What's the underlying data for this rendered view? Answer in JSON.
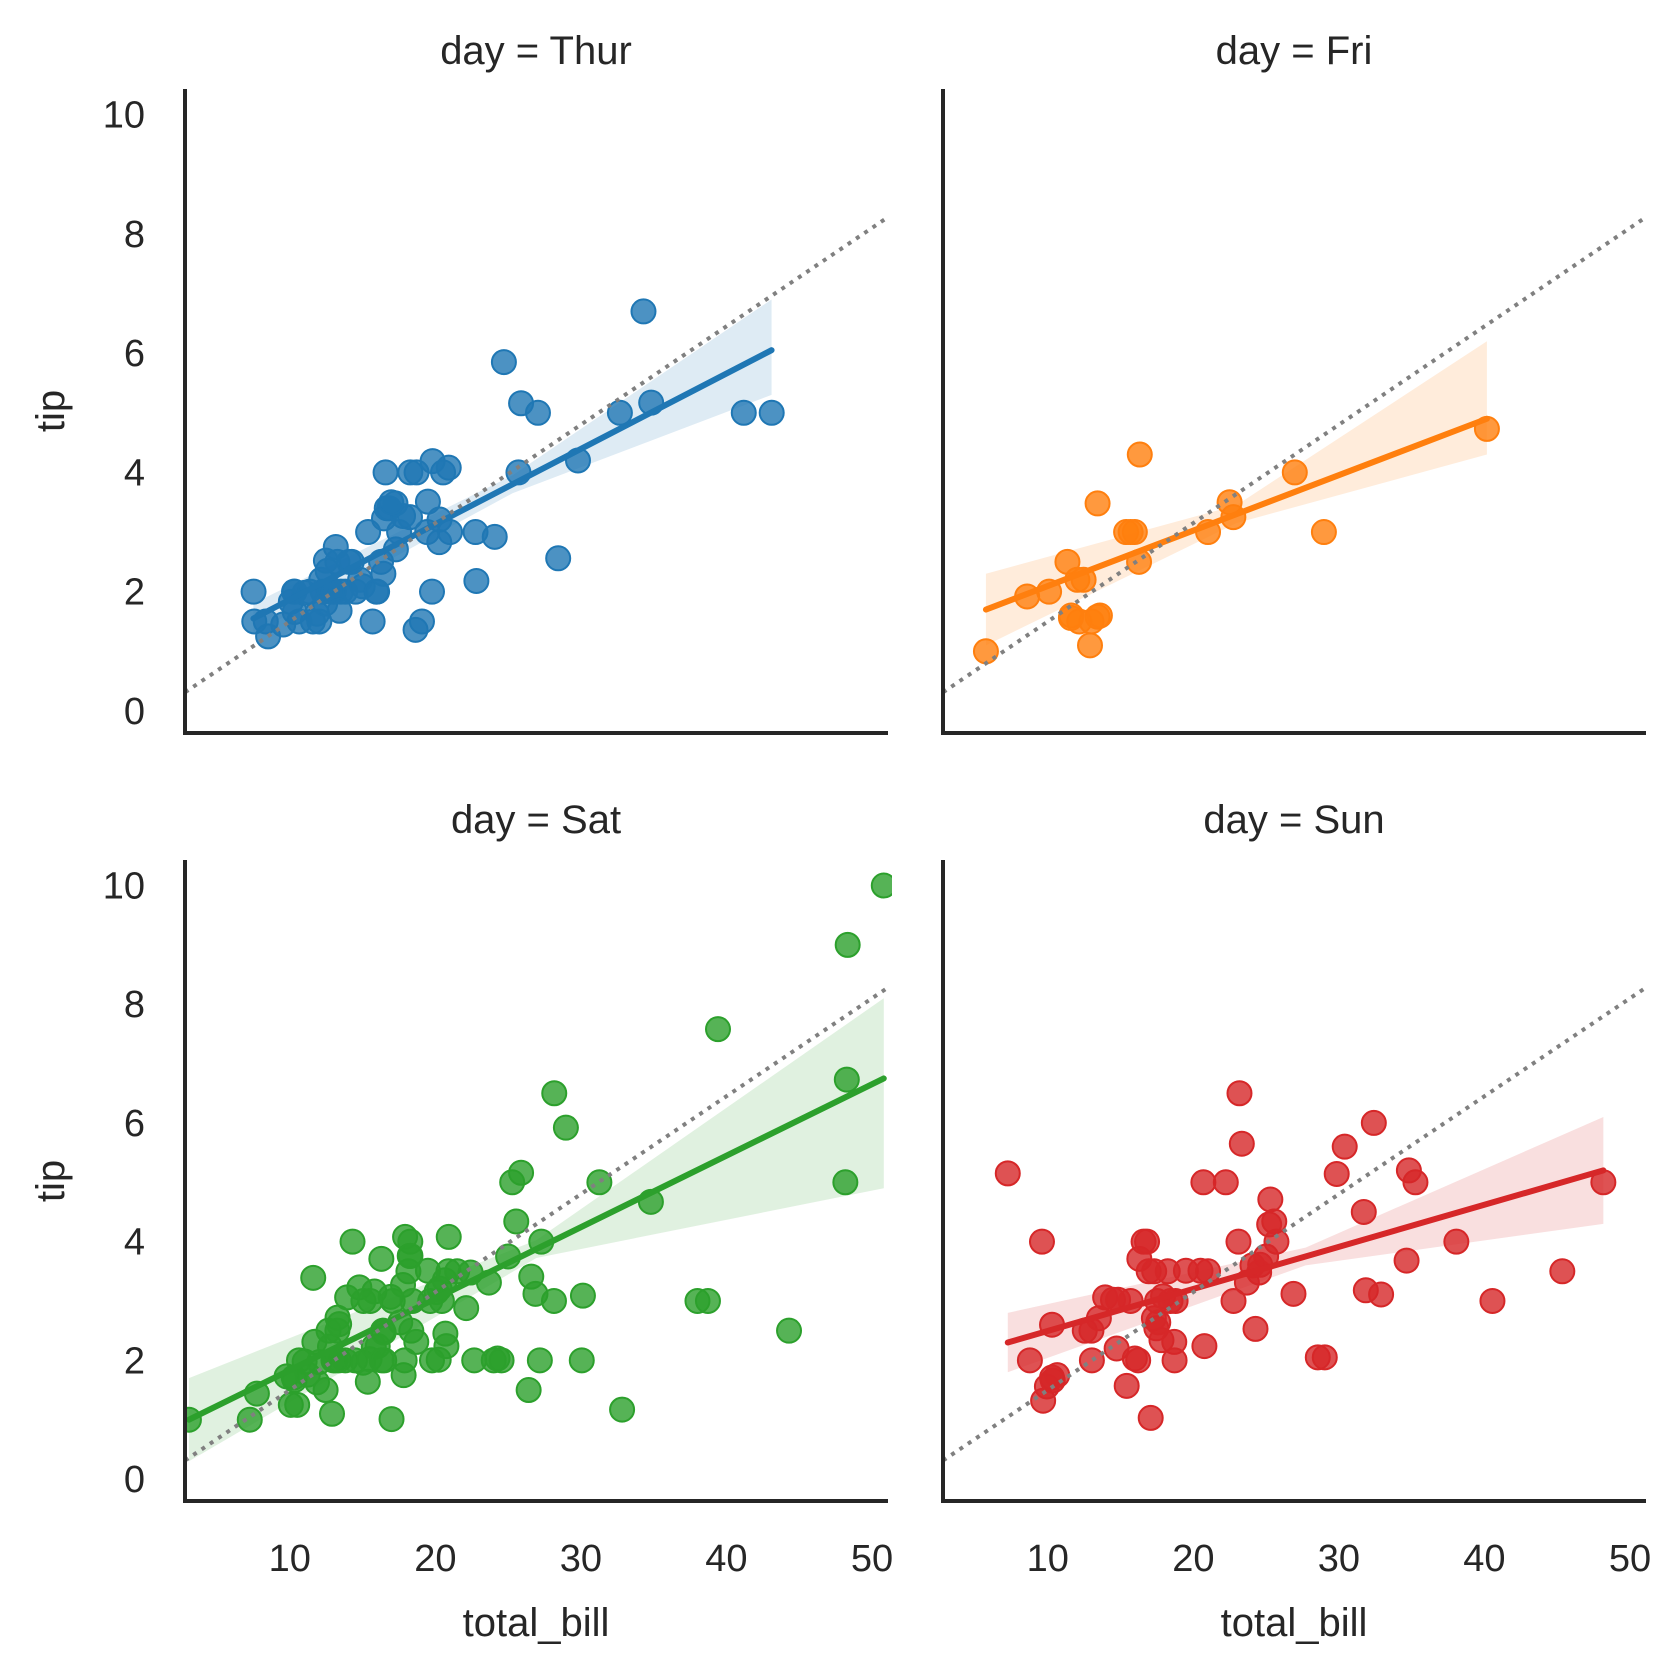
{
  "chart_data": [
    {
      "type": "scatter",
      "title": "day = Thur",
      "xlabel": "",
      "ylabel": "tip",
      "xlim": [
        2.8,
        51.1
      ],
      "ylim": [
        -0.37,
        10.43
      ],
      "xticks": [],
      "yticks": [
        "0",
        "2",
        "4",
        "6",
        "8",
        "10"
      ],
      "color": "#1f77b4",
      "regression": {
        "x": [
          7.5,
          43.1
        ],
        "y": [
          1.55,
          6.05
        ],
        "ci_low_end": [
          1.3,
          5.3
        ],
        "ci_high_end": [
          1.8,
          6.9
        ]
      },
      "reference_line": {
        "slope": 0.165,
        "intercept": -0.15,
        "style": "dotted",
        "color": "#808080"
      },
      "points": [
        [
          7.51,
          2.0
        ],
        [
          7.56,
          1.5
        ],
        [
          8.35,
          1.5
        ],
        [
          8.51,
          1.25
        ],
        [
          9.55,
          1.45
        ],
        [
          10.07,
          1.83
        ],
        [
          10.29,
          2.0
        ],
        [
          10.33,
          2.0
        ],
        [
          10.34,
          1.66
        ],
        [
          10.65,
          1.5
        ],
        [
          11.02,
          1.98
        ],
        [
          11.38,
          2.0
        ],
        [
          11.59,
          1.5
        ],
        [
          11.87,
          1.63
        ],
        [
          12.03,
          1.5
        ],
        [
          12.16,
          2.2
        ],
        [
          12.26,
          2.0
        ],
        [
          12.43,
          1.8
        ],
        [
          12.48,
          2.52
        ],
        [
          12.6,
          2.35
        ],
        [
          12.74,
          2.01
        ],
        [
          13.0,
          2.0
        ],
        [
          13.03,
          2.0
        ],
        [
          13.16,
          2.75
        ],
        [
          13.27,
          2.5
        ],
        [
          13.51,
          2.0
        ],
        [
          13.81,
          2.0
        ],
        [
          13.42,
          1.68
        ],
        [
          14.07,
          2.5
        ],
        [
          14.26,
          2.5
        ],
        [
          14.52,
          2.0
        ],
        [
          14.83,
          2.2
        ],
        [
          15.01,
          2.09
        ],
        [
          15.38,
          3.0
        ],
        [
          15.69,
          1.5
        ],
        [
          15.95,
          2.0
        ],
        [
          16.0,
          2.0
        ],
        [
          16.27,
          2.5
        ],
        [
          16.43,
          2.3
        ],
        [
          16.47,
          3.23
        ],
        [
          16.58,
          4.0
        ],
        [
          16.66,
          3.4
        ],
        [
          16.82,
          3.4
        ],
        [
          17.29,
          2.71
        ],
        [
          17.51,
          3.0
        ],
        [
          17.78,
          3.27
        ],
        [
          18.26,
          3.25
        ],
        [
          18.28,
          4.0
        ],
        [
          18.64,
          1.36
        ],
        [
          18.71,
          4.0
        ],
        [
          19.08,
          1.5
        ],
        [
          19.44,
          3.0
        ],
        [
          19.49,
          3.51
        ],
        [
          19.77,
          2.0
        ],
        [
          20.27,
          2.83
        ],
        [
          20.29,
          3.21
        ],
        [
          20.53,
          4.0
        ],
        [
          20.92,
          4.08
        ],
        [
          21.01,
          3.0
        ],
        [
          22.76,
          3.0
        ],
        [
          22.82,
          2.18
        ],
        [
          24.08,
          2.92
        ],
        [
          25.71,
          4.0
        ],
        [
          25.89,
          5.16
        ],
        [
          27.05,
          5.0
        ],
        [
          28.44,
          2.56
        ],
        [
          29.8,
          4.2
        ],
        [
          32.68,
          5.0
        ],
        [
          34.3,
          6.7
        ],
        [
          34.83,
          5.17
        ],
        [
          41.19,
          5.0
        ],
        [
          43.11,
          5.0
        ],
        [
          24.71,
          5.85
        ],
        [
          17.26,
          3.48
        ],
        [
          16.97,
          3.5
        ],
        [
          19.81,
          4.19
        ]
      ]
    },
    {
      "type": "scatter",
      "title": "day = Fri",
      "xlabel": "",
      "ylabel": "",
      "xlim": [
        2.8,
        51.1
      ],
      "ylim": [
        -0.37,
        10.43
      ],
      "xticks": [],
      "yticks": [],
      "color": "#ff7f0e",
      "regression": {
        "x": [
          5.75,
          40.17
        ],
        "y": [
          1.7,
          4.9
        ],
        "ci_low_end": [
          1.1,
          4.3
        ],
        "ci_high_end": [
          2.3,
          6.2
        ]
      },
      "reference_line": {
        "slope": 0.165,
        "intercept": -0.15,
        "style": "dotted",
        "color": "#808080"
      },
      "points": [
        [
          5.75,
          1.0
        ],
        [
          8.58,
          1.92
        ],
        [
          10.09,
          2.0
        ],
        [
          11.35,
          2.5
        ],
        [
          12.03,
          2.2
        ],
        [
          12.46,
          2.2
        ],
        [
          13.42,
          3.48
        ],
        [
          13.42,
          1.58
        ],
        [
          12.16,
          1.5
        ],
        [
          13.0,
          1.5
        ],
        [
          12.9,
          1.1
        ],
        [
          15.38,
          3.0
        ],
        [
          15.98,
          3.0
        ],
        [
          16.27,
          2.5
        ],
        [
          16.32,
          4.3
        ],
        [
          21.01,
          3.0
        ],
        [
          22.49,
          3.5
        ],
        [
          22.75,
          3.25
        ],
        [
          26.97,
          4.0
        ],
        [
          28.97,
          3.0
        ],
        [
          40.17,
          4.73
        ],
        [
          15.69,
          3.0
        ],
        [
          11.61,
          1.6
        ],
        [
          13.58,
          1.6
        ],
        [
          11.59,
          1.56
        ]
      ]
    },
    {
      "type": "scatter",
      "title": "day = Sat",
      "xlabel": "total_bill",
      "ylabel": "tip",
      "xlim": [
        2.8,
        51.1
      ],
      "ylim": [
        -0.37,
        10.43
      ],
      "xticks": [
        "10",
        "20",
        "30",
        "40",
        "50"
      ],
      "yticks": [
        "0",
        "2",
        "4",
        "6",
        "8",
        "10"
      ],
      "color": "#2ca02c",
      "regression": {
        "x": [
          3.07,
          50.81
        ],
        "y": [
          1.0,
          6.75
        ],
        "ci_low_end": [
          0.3,
          4.9
        ],
        "ci_high_end": [
          1.7,
          8.1
        ]
      },
      "reference_line": {
        "slope": 0.165,
        "intercept": -0.15,
        "style": "dotted",
        "color": "#808080"
      },
      "points": [
        [
          3.07,
          1.0
        ],
        [
          7.25,
          1.0
        ],
        [
          7.74,
          1.44
        ],
        [
          9.78,
          1.73
        ],
        [
          10.07,
          1.25
        ],
        [
          10.27,
          1.71
        ],
        [
          10.33,
          1.67
        ],
        [
          10.51,
          1.25
        ],
        [
          10.63,
          2.0
        ],
        [
          11.02,
          1.98
        ],
        [
          11.24,
          1.76
        ],
        [
          11.61,
          3.39
        ],
        [
          11.69,
          2.31
        ],
        [
          11.87,
          1.63
        ],
        [
          12.02,
          1.97
        ],
        [
          12.46,
          1.5
        ],
        [
          12.66,
          2.5
        ],
        [
          12.76,
          2.23
        ],
        [
          12.9,
          1.1
        ],
        [
          13.0,
          2.0
        ],
        [
          13.13,
          2.0
        ],
        [
          13.27,
          2.5
        ],
        [
          13.28,
          2.72
        ],
        [
          13.37,
          2.0
        ],
        [
          13.39,
          2.61
        ],
        [
          13.81,
          2.0
        ],
        [
          13.94,
          3.06
        ],
        [
          14.31,
          4.0
        ],
        [
          14.48,
          2.0
        ],
        [
          14.78,
          3.23
        ],
        [
          15.04,
          1.96
        ],
        [
          15.06,
          3.0
        ],
        [
          15.36,
          1.64
        ],
        [
          15.48,
          2.02
        ],
        [
          15.53,
          3.0
        ],
        [
          15.77,
          2.23
        ],
        [
          15.81,
          3.16
        ],
        [
          16.04,
          2.24
        ],
        [
          16.29,
          3.71
        ],
        [
          16.31,
          2.0
        ],
        [
          16.4,
          2.5
        ],
        [
          16.45,
          2.47
        ],
        [
          16.49,
          2.0
        ],
        [
          16.93,
          3.07
        ],
        [
          16.99,
          1.01
        ],
        [
          17.07,
          3.0
        ],
        [
          17.59,
          2.64
        ],
        [
          17.78,
          3.27
        ],
        [
          17.82,
          1.75
        ],
        [
          17.89,
          2.0
        ],
        [
          17.92,
          4.08
        ],
        [
          18.15,
          3.5
        ],
        [
          18.24,
          3.76
        ],
        [
          18.28,
          4.0
        ],
        [
          18.29,
          3.76
        ],
        [
          18.35,
          2.5
        ],
        [
          18.43,
          3.0
        ],
        [
          18.69,
          2.31
        ],
        [
          19.49,
          3.51
        ],
        [
          19.65,
          3.0
        ],
        [
          19.77,
          2.0
        ],
        [
          20.08,
          3.15
        ],
        [
          20.23,
          2.01
        ],
        [
          20.29,
          3.21
        ],
        [
          20.45,
          3.0
        ],
        [
          20.65,
          3.35
        ],
        [
          20.69,
          2.45
        ],
        [
          20.76,
          2.24
        ],
        [
          20.9,
          3.5
        ],
        [
          20.92,
          4.08
        ],
        [
          21.5,
          3.5
        ],
        [
          22.12,
          2.88
        ],
        [
          22.42,
          3.48
        ],
        [
          22.67,
          2.0
        ],
        [
          23.68,
          3.31
        ],
        [
          24.01,
          2.0
        ],
        [
          24.27,
          2.03
        ],
        [
          24.55,
          2.0
        ],
        [
          25.0,
          3.75
        ],
        [
          25.28,
          5.0
        ],
        [
          25.56,
          4.34
        ],
        [
          25.89,
          5.16
        ],
        [
          26.41,
          1.5
        ],
        [
          26.59,
          3.41
        ],
        [
          26.88,
          3.12
        ],
        [
          27.18,
          2.0
        ],
        [
          27.28,
          4.0
        ],
        [
          28.15,
          3.0
        ],
        [
          28.17,
          6.5
        ],
        [
          28.97,
          5.92
        ],
        [
          30.06,
          2.0
        ],
        [
          30.14,
          3.09
        ],
        [
          31.27,
          5.0
        ],
        [
          32.83,
          1.17
        ],
        [
          34.81,
          4.67
        ],
        [
          38.01,
          3.0
        ],
        [
          38.73,
          3.0
        ],
        [
          39.42,
          7.58
        ],
        [
          44.3,
          2.5
        ],
        [
          48.17,
          5.0
        ],
        [
          48.27,
          6.73
        ],
        [
          48.33,
          9.0
        ],
        [
          50.81,
          10.0
        ]
      ]
    },
    {
      "type": "scatter",
      "title": "day = Sun",
      "xlabel": "total_bill",
      "ylabel": "",
      "xlim": [
        2.8,
        51.1
      ],
      "ylim": [
        -0.37,
        10.43
      ],
      "xticks": [
        "10",
        "20",
        "30",
        "40",
        "50"
      ],
      "yticks": [],
      "color": "#d62728",
      "regression": {
        "x": [
          7.25,
          48.17
        ],
        "y": [
          2.3,
          5.2
        ],
        "ci_low_end": [
          1.8,
          4.3
        ],
        "ci_high_end": [
          2.8,
          6.1
        ]
      },
      "reference_line": {
        "slope": 0.165,
        "intercept": -0.15,
        "style": "dotted",
        "color": "#808080"
      },
      "points": [
        [
          7.25,
          5.15
        ],
        [
          8.77,
          2.0
        ],
        [
          9.6,
          4.0
        ],
        [
          9.68,
          1.32
        ],
        [
          9.94,
          1.56
        ],
        [
          10.29,
          1.71
        ],
        [
          10.34,
          1.66
        ],
        [
          10.65,
          1.75
        ],
        [
          10.29,
          2.6
        ],
        [
          12.54,
          2.5
        ],
        [
          13.0,
          2.5
        ],
        [
          13.03,
          2.0
        ],
        [
          13.51,
          2.71
        ],
        [
          13.94,
          3.06
        ],
        [
          14.48,
          3.02
        ],
        [
          14.73,
          2.2
        ],
        [
          14.83,
          3.02
        ],
        [
          15.42,
          1.57
        ],
        [
          15.69,
          3.0
        ],
        [
          15.98,
          2.03
        ],
        [
          16.21,
          2.0
        ],
        [
          16.29,
          3.71
        ],
        [
          16.58,
          4.0
        ],
        [
          16.93,
          3.5
        ],
        [
          17.29,
          2.71
        ],
        [
          17.31,
          3.5
        ],
        [
          17.46,
          2.54
        ],
        [
          17.51,
          3.0
        ],
        [
          17.81,
          2.34
        ],
        [
          17.92,
          3.08
        ],
        [
          18.24,
          3.5
        ],
        [
          18.43,
          3.0
        ],
        [
          18.69,
          2.31
        ],
        [
          18.78,
          3.0
        ],
        [
          18.71,
          2.0
        ],
        [
          19.49,
          3.51
        ],
        [
          20.49,
          3.51
        ],
        [
          20.69,
          5.0
        ],
        [
          20.76,
          2.24
        ],
        [
          21.01,
          3.5
        ],
        [
          22.23,
          5.0
        ],
        [
          22.76,
          3.0
        ],
        [
          23.1,
          4.0
        ],
        [
          23.33,
          5.65
        ],
        [
          23.68,
          3.31
        ],
        [
          24.06,
          3.6
        ],
        [
          24.59,
          3.61
        ],
        [
          25.0,
          3.75
        ],
        [
          25.21,
          4.29
        ],
        [
          25.29,
          4.71
        ],
        [
          25.56,
          4.34
        ],
        [
          25.71,
          4.0
        ],
        [
          26.88,
          3.12
        ],
        [
          28.55,
          2.05
        ],
        [
          29.85,
          5.14
        ],
        [
          30.4,
          5.6
        ],
        [
          31.71,
          4.5
        ],
        [
          32.4,
          6.0
        ],
        [
          34.65,
          3.68
        ],
        [
          34.81,
          5.2
        ],
        [
          35.26,
          5.0
        ],
        [
          38.07,
          4.0
        ],
        [
          40.55,
          3.0
        ],
        [
          45.35,
          3.5
        ],
        [
          48.17,
          5.0
        ],
        [
          23.17,
          6.5
        ],
        [
          24.27,
          2.53
        ],
        [
          29.03,
          2.05
        ],
        [
          31.85,
          3.18
        ],
        [
          32.9,
          3.11
        ],
        [
          16.82,
          4.0
        ],
        [
          17.07,
          1.03
        ],
        [
          17.59,
          2.64
        ],
        [
          24.52,
          3.48
        ]
      ]
    }
  ]
}
